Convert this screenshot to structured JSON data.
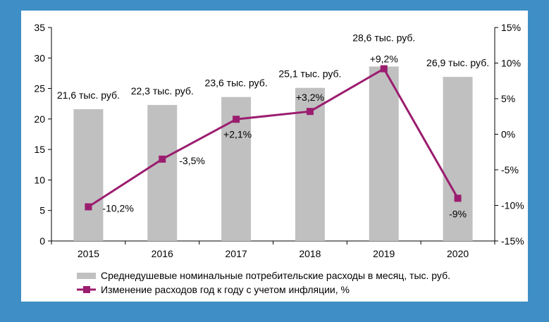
{
  "chart_data": {
    "type": "bar",
    "categories": [
      "2015",
      "2016",
      "2017",
      "2018",
      "2019",
      "2020"
    ],
    "series": [
      {
        "name": "Среднедушевые номинальные потребительские расходы в месяц, тыс. руб.",
        "type": "bar",
        "axis": "left",
        "values": [
          21.6,
          22.3,
          23.6,
          25.1,
          28.6,
          26.9
        ],
        "labels": [
          "21,6 тыс. руб.",
          "22,3 тыс. руб.",
          "23,6 тыс. руб.",
          "25,1 тыс. руб.",
          "28,6 тыс. руб.",
          "26,9 тыс. руб."
        ],
        "color": "#c0c0c0"
      },
      {
        "name": "Изменение расходов год к году с учетом инфляции, %",
        "type": "line",
        "axis": "right",
        "values": [
          -10.2,
          -3.5,
          2.1,
          3.2,
          9.2,
          -9.0
        ],
        "labels": [
          "-10,2%",
          "-3,5%",
          "+2,1%",
          "+3,2%",
          "+9,2%",
          "-9%"
        ],
        "color": "#9b1d6f"
      }
    ],
    "y_left": {
      "min": 0,
      "max": 35,
      "ticks": [
        0,
        5,
        10,
        15,
        20,
        25,
        30,
        35
      ],
      "tick_labels": [
        "0",
        "5",
        "10",
        "15",
        "20",
        "25",
        "30",
        "35"
      ]
    },
    "y_right": {
      "min": -15,
      "max": 15,
      "ticks": [
        -15,
        -10,
        -5,
        0,
        5,
        10,
        15
      ],
      "tick_labels": [
        "-15%",
        "-10%",
        "-5%",
        "0%",
        "5%",
        "10%",
        "15%"
      ]
    },
    "grid": false,
    "legend_position": "bottom"
  }
}
